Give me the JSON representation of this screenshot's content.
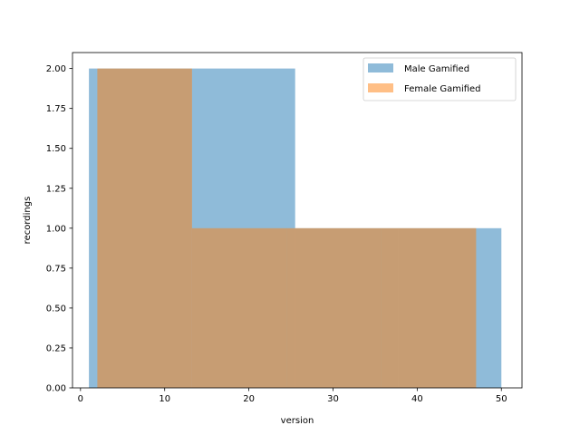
{
  "chart_data": {
    "type": "bar",
    "histogram": true,
    "xlabel": "version",
    "ylabel": "recordings",
    "xlim": [
      -0.95,
      52.45
    ],
    "ylim": [
      0,
      2.1
    ],
    "xticks": [
      0,
      10,
      20,
      30,
      40,
      50
    ],
    "yticks": [
      0.0,
      0.25,
      0.5,
      0.75,
      1.0,
      1.25,
      1.5,
      1.75,
      2.0
    ],
    "xtick_labels": [
      "0",
      "10",
      "20",
      "30",
      "40",
      "50"
    ],
    "ytick_labels": [
      "0.00",
      "0.25",
      "0.50",
      "0.75",
      "1.00",
      "1.25",
      "1.50",
      "1.75",
      "2.00"
    ],
    "legend_position": "top-right",
    "series": [
      {
        "name": "Male Gamified",
        "color": "#1f77b4",
        "alpha": 0.5,
        "bins": [
          {
            "x0": 1.0,
            "x1": 13.25,
            "value": 2
          },
          {
            "x0": 13.25,
            "x1": 25.5,
            "value": 2
          },
          {
            "x0": 25.5,
            "x1": 37.75,
            "value": 1
          },
          {
            "x0": 37.75,
            "x1": 50.0,
            "value": 1
          }
        ]
      },
      {
        "name": "Female Gamified",
        "color": "#ff7f0e",
        "alpha": 0.5,
        "bins": [
          {
            "x0": 2.0,
            "x1": 13.25,
            "value": 2
          },
          {
            "x0": 13.25,
            "x1": 24.5,
            "value": 1
          },
          {
            "x0": 24.5,
            "x1": 35.75,
            "value": 1
          },
          {
            "x0": 35.75,
            "x1": 47.0,
            "value": 1
          }
        ]
      }
    ]
  }
}
